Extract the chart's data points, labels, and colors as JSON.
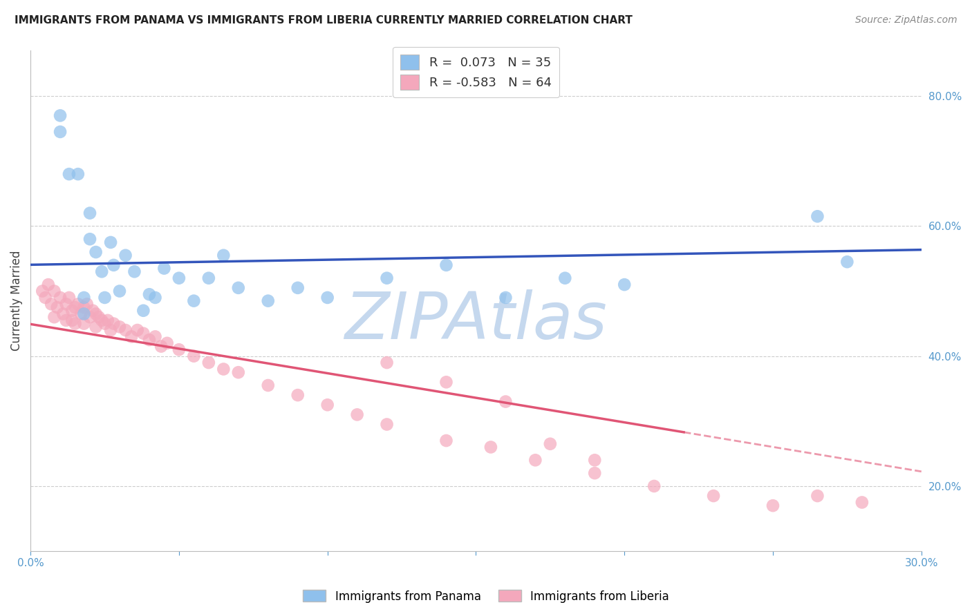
{
  "title": "IMMIGRANTS FROM PANAMA VS IMMIGRANTS FROM LIBERIA CURRENTLY MARRIED CORRELATION CHART",
  "source": "Source: ZipAtlas.com",
  "ylabel": "Currently Married",
  "xlim": [
    0.0,
    0.3
  ],
  "ylim": [
    0.1,
    0.87
  ],
  "xticks": [
    0.0,
    0.05,
    0.1,
    0.15,
    0.2,
    0.25,
    0.3
  ],
  "xticklabels": [
    "0.0%",
    "",
    "",
    "",
    "",
    "",
    "30.0%"
  ],
  "yticks_right": [
    0.2,
    0.4,
    0.6,
    0.8
  ],
  "ytick_right_labels": [
    "20.0%",
    "40.0%",
    "60.0%",
    "80.0%"
  ],
  "legend_label1": "R =  0.073   N = 35",
  "legend_label2": "R = -0.583   N = 64",
  "legend_bottom1": "Immigrants from Panama",
  "legend_bottom2": "Immigrants from Liberia",
  "R_panama": 0.073,
  "N_panama": 35,
  "R_liberia": -0.583,
  "N_liberia": 64,
  "color_panama": "#8FC0EC",
  "color_liberia": "#F4A8BC",
  "line_color_panama": "#3355BB",
  "line_color_liberia": "#E05575",
  "watermark": "ZIPAtlas",
  "watermark_color": "#C5D8EE",
  "background_color": "#FFFFFF",
  "grid_color": "#CCCCCC",
  "panama_x": [
    0.01,
    0.01,
    0.013,
    0.016,
    0.018,
    0.018,
    0.02,
    0.02,
    0.022,
    0.024,
    0.025,
    0.027,
    0.028,
    0.03,
    0.032,
    0.035,
    0.038,
    0.04,
    0.042,
    0.045,
    0.05,
    0.055,
    0.06,
    0.065,
    0.07,
    0.08,
    0.09,
    0.1,
    0.12,
    0.14,
    0.16,
    0.18,
    0.2,
    0.265,
    0.275
  ],
  "panama_y": [
    0.77,
    0.745,
    0.68,
    0.68,
    0.49,
    0.465,
    0.62,
    0.58,
    0.56,
    0.53,
    0.49,
    0.575,
    0.54,
    0.5,
    0.555,
    0.53,
    0.47,
    0.495,
    0.49,
    0.535,
    0.52,
    0.485,
    0.52,
    0.555,
    0.505,
    0.485,
    0.505,
    0.49,
    0.52,
    0.54,
    0.49,
    0.52,
    0.51,
    0.615,
    0.545
  ],
  "liberia_x": [
    0.004,
    0.005,
    0.006,
    0.007,
    0.008,
    0.008,
    0.009,
    0.01,
    0.011,
    0.012,
    0.012,
    0.013,
    0.014,
    0.014,
    0.015,
    0.015,
    0.016,
    0.017,
    0.018,
    0.018,
    0.019,
    0.02,
    0.021,
    0.022,
    0.022,
    0.023,
    0.024,
    0.025,
    0.026,
    0.027,
    0.028,
    0.03,
    0.032,
    0.034,
    0.036,
    0.038,
    0.04,
    0.042,
    0.044,
    0.046,
    0.05,
    0.055,
    0.06,
    0.065,
    0.07,
    0.08,
    0.09,
    0.1,
    0.11,
    0.12,
    0.14,
    0.155,
    0.17,
    0.19,
    0.21,
    0.23,
    0.25,
    0.265,
    0.28,
    0.12,
    0.14,
    0.16,
    0.175,
    0.19
  ],
  "liberia_y": [
    0.5,
    0.49,
    0.51,
    0.48,
    0.5,
    0.46,
    0.475,
    0.49,
    0.465,
    0.48,
    0.455,
    0.49,
    0.47,
    0.455,
    0.475,
    0.45,
    0.48,
    0.465,
    0.475,
    0.45,
    0.48,
    0.46,
    0.47,
    0.465,
    0.445,
    0.46,
    0.455,
    0.45,
    0.455,
    0.44,
    0.45,
    0.445,
    0.44,
    0.43,
    0.44,
    0.435,
    0.425,
    0.43,
    0.415,
    0.42,
    0.41,
    0.4,
    0.39,
    0.38,
    0.375,
    0.355,
    0.34,
    0.325,
    0.31,
    0.295,
    0.27,
    0.26,
    0.24,
    0.22,
    0.2,
    0.185,
    0.17,
    0.185,
    0.175,
    0.39,
    0.36,
    0.33,
    0.265,
    0.24
  ]
}
